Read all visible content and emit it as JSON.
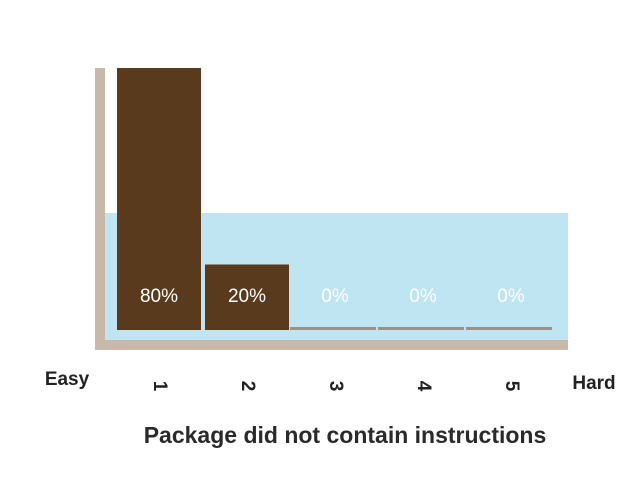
{
  "chart_data": {
    "type": "bar",
    "title": "Package did not contain instructions",
    "low_label": "Easy",
    "high_label": "Hard",
    "categories": [
      "1",
      "2",
      "3",
      "4",
      "5"
    ],
    "values": [
      80,
      20,
      0,
      0,
      0
    ],
    "value_labels": [
      "80%",
      "20%",
      "0%",
      "0%",
      "0%"
    ],
    "color": "#5a3a1c"
  }
}
